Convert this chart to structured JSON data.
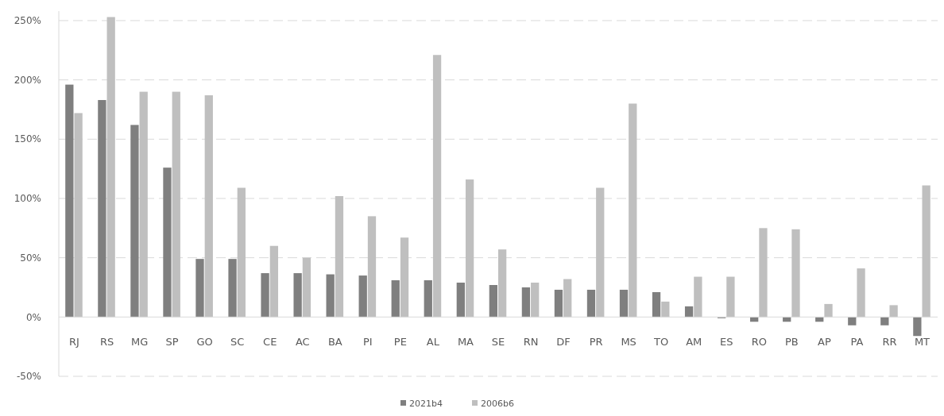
{
  "chart_data": {
    "type": "bar",
    "categories": [
      "RJ",
      "RS",
      "MG",
      "SP",
      "GO",
      "SC",
      "CE",
      "AC",
      "BA",
      "PI",
      "PE",
      "AL",
      "MA",
      "SE",
      "RN",
      "DF",
      "PR",
      "MS",
      "TO",
      "AM",
      "ES",
      "RO",
      "PB",
      "AP",
      "PA",
      "RR",
      "MT"
    ],
    "series": [
      {
        "name": "2021b4",
        "color": "#7f7f7f",
        "values": [
          196,
          183,
          162,
          126,
          49,
          49,
          37,
          37,
          36,
          35,
          31,
          31,
          29,
          27,
          25,
          23,
          23,
          23,
          21,
          9,
          -1,
          -4,
          -4,
          -4,
          -7,
          -7,
          -16
        ]
      },
      {
        "name": "2006b6",
        "color": "#bfbfbf",
        "values": [
          172,
          253,
          190,
          190,
          187,
          109,
          60,
          50,
          102,
          85,
          67,
          221,
          116,
          57,
          29,
          32,
          109,
          180,
          13,
          34,
          34,
          75,
          74,
          11,
          41,
          10,
          111
        ]
      }
    ],
    "ylim": [
      -50,
      258
    ],
    "yticks": [
      {
        "value": -50,
        "label": "-50%"
      },
      {
        "value": 0,
        "label": "0%"
      },
      {
        "value": 50,
        "label": "50%"
      },
      {
        "value": 100,
        "label": "100%"
      },
      {
        "value": 150,
        "label": "150%"
      },
      {
        "value": 200,
        "label": "200%"
      },
      {
        "value": 250,
        "label": "250%"
      }
    ],
    "grid": "y",
    "legend": "bottom"
  }
}
